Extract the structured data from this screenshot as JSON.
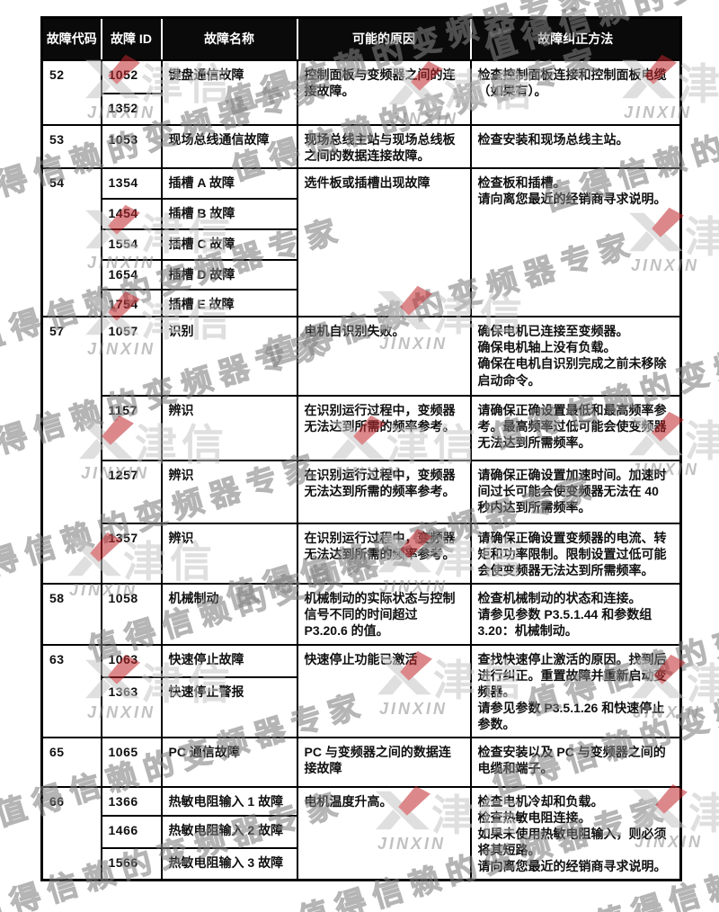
{
  "watermark": {
    "phrase": "值得信赖的变频器专家",
    "logo_zh": "津信",
    "logo_en": "JINXIN",
    "accent_color": "#c1272d",
    "gray_color": "#c6c6c6"
  },
  "table": {
    "headers": [
      "故障代码",
      "故障 ID",
      "故障名称",
      "可能的原因",
      "故障纠正方法"
    ],
    "groups": [
      {
        "code": "52",
        "name": "键盘通信故障",
        "cause": "控制面板与变频器之间的连接故障。",
        "fix": "检查控制面板连接和控制面板电缆（如果有）。",
        "rows": [
          {
            "id": "1052"
          },
          {
            "id": "1352"
          }
        ]
      },
      {
        "code": "53",
        "name": "现场总线通信故障",
        "cause": "现场总线主站与现场总线板之间的数据连接故障。",
        "fix": "检查安装和现场总线主站。",
        "rows": [
          {
            "id": "1053"
          }
        ]
      },
      {
        "code": "54",
        "cause": "选件板或插槽出现故障",
        "fix": "检查板和插槽。\n请向离您最近的经销商寻求说明。",
        "rows": [
          {
            "id": "1354",
            "name": "插槽 A 故障"
          },
          {
            "id": "1454",
            "name": "插槽 B 故障"
          },
          {
            "id": "1554",
            "name": "插槽 C 故障"
          },
          {
            "id": "1654",
            "name": "插槽 D 故障"
          },
          {
            "id": "1754",
            "name": "插槽 E 故障"
          }
        ]
      },
      {
        "code": "57",
        "rows": [
          {
            "id": "1057",
            "name": "识别",
            "cause": "电机自识别失败。",
            "fix": "确保电机已连接至变频器。\n确保电机轴上没有负载。\n确保在电机自识别完成之前未移除启动命令。"
          },
          {
            "id": "1157",
            "name": "辨识",
            "cause": "在识别运行过程中，变频器无法达到所需的频率参考。",
            "fix": "请确保正确设置最低和最高频率参考。最高频率过低可能会使变频器无法达到所需频率。"
          },
          {
            "id": "1257",
            "name": "辨识",
            "cause": "在识别运行过程中，变频器无法达到所需的频率参考。",
            "fix": "请确保正确设置加速时间。加速时间过长可能会使变频器无法在 40 秒内达到所需频率。"
          },
          {
            "id": "1357",
            "name": "辨识",
            "cause": "在识别运行过程中，变频器无法达到所需的频率参考。",
            "fix": "请确保正确设置变频器的电流、转矩和功率限制。限制设置过低可能会使变频器无法达到所需频率。"
          }
        ]
      },
      {
        "code": "58",
        "name": "机械制动",
        "cause": "机械制动的实际状态与控制信号不同的时间超过 P3.20.6 的值。",
        "fix": "检查机械制动的状态和连接。\n请参见参数 P3.5.1.44 和参数组 3.20：机械制动。",
        "rows": [
          {
            "id": "1058"
          }
        ]
      },
      {
        "code": "63",
        "cause": "快速停止功能已激活",
        "fix": "查找快速停止激活的原因。找到后进行纠正。重置故障并重新启动变频器。\n请参见参数 P3.5.1.26 和快速停止参数。",
        "rows": [
          {
            "id": "1063",
            "name": "快速停止故障"
          },
          {
            "id": "1363",
            "name": "快速停止警报"
          }
        ]
      },
      {
        "code": "65",
        "name": "PC 通信故障",
        "cause": "PC 与变频器之间的数据连接故障",
        "fix": "检查安装以及 PC 与变频器之间的电缆和端子。",
        "rows": [
          {
            "id": "1065"
          }
        ]
      },
      {
        "code": "66",
        "cause": "电机温度升高。",
        "fix": "检查电机冷却和负载。\n检查热敏电阻连接。\n如果未使用热敏电阻输入，则必须将其短路。\n请向离您最近的经销商寻求说明。",
        "rows": [
          {
            "id": "1366",
            "name": "热敏电阻输入 1 故障"
          },
          {
            "id": "1466",
            "name": "热敏电阻输入 2 故障"
          },
          {
            "id": "1566",
            "name": "热敏电阻输入 3 故障"
          }
        ]
      }
    ]
  }
}
